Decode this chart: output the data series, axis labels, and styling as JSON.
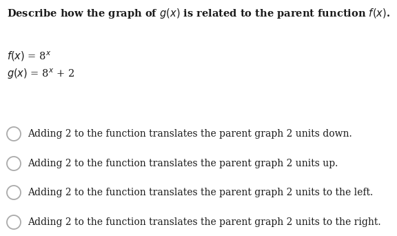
{
  "title": "Describe how the graph of g(x) is related to the parent function f(x).",
  "fx_text": "f(x) = 8",
  "fx_exp": "x",
  "gx_text": "g(x) = 8",
  "gx_exp": "x",
  "gx_suffix": " + 2",
  "options": [
    "Adding 2 to the function translates the parent graph 2 units down.",
    "Adding 2 to the function translates the parent graph 2 units up.",
    "Adding 2 to the function translates the parent graph 2 units to the left.",
    "Adding 2 to the function translates the parent graph 2 units to the right."
  ],
  "bg_color": "#ffffff",
  "text_color": "#1a1a1a",
  "circle_color": "#aaaaaa",
  "title_fontsize": 10.5,
  "body_fontsize": 10,
  "func_fontsize": 10.5
}
